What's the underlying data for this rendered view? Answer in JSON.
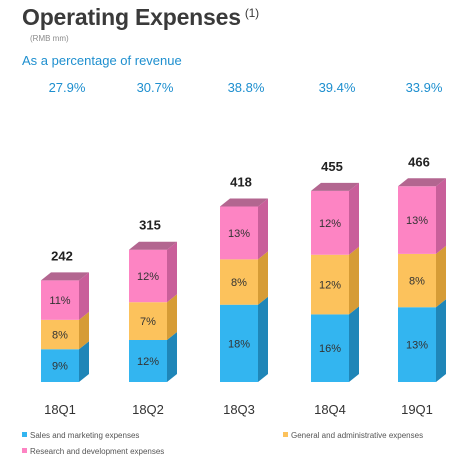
{
  "header": {
    "title": "Operating Expenses",
    "footnote": "(1)",
    "unit": "(RMB mm)",
    "subtitle": "As a percentage of revenue"
  },
  "chart_data": {
    "type": "bar",
    "stacked": true,
    "categories": [
      "18Q1",
      "18Q2",
      "18Q3",
      "18Q4",
      "19Q1"
    ],
    "totals": [
      242,
      315,
      418,
      455,
      466
    ],
    "percent_of_revenue": [
      "27.9%",
      "30.7%",
      "38.8%",
      "39.4%",
      "33.9%"
    ],
    "series": [
      {
        "name": "Sales and marketing expenses",
        "labels": [
          "9%",
          "12%",
          "18%",
          "16%",
          "13%"
        ],
        "values": [
          78,
          100,
          184,
          161,
          178
        ],
        "color": "#33b5f0"
      },
      {
        "name": "General and administrative expenses",
        "labels": [
          "8%",
          "7%",
          "8%",
          "12%",
          "8%"
        ],
        "values": [
          70,
          90,
          108,
          142,
          127
        ],
        "color": "#fcc25c"
      },
      {
        "name": "Research and development expenses",
        "labels": [
          "11%",
          "12%",
          "13%",
          "12%",
          "13%"
        ],
        "values": [
          94,
          125,
          126,
          152,
          161
        ],
        "color": "#fd84c3"
      }
    ],
    "legend_position": "bottom",
    "grid": false
  }
}
